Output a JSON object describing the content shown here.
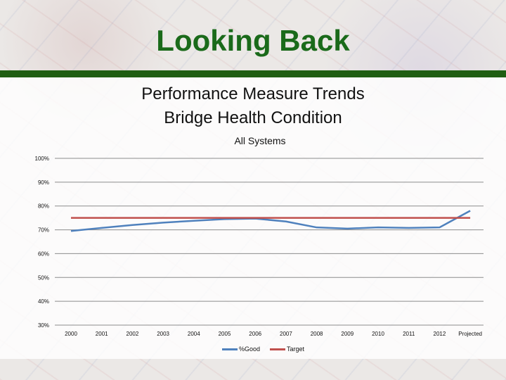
{
  "header": {
    "title": "Looking Back"
  },
  "chart_header": {
    "line1": "Performance Measure Trends",
    "line2": "Bridge Health Condition"
  },
  "chart_data": {
    "type": "line",
    "title": "All Systems",
    "xlabel": "",
    "ylabel": "",
    "categories": [
      "2000",
      "2001",
      "2002",
      "2003",
      "2004",
      "2005",
      "2006",
      "2007",
      "2008",
      "2009",
      "2010",
      "2011",
      "2012",
      "Projected"
    ],
    "ylim": [
      30,
      100
    ],
    "yticks": [
      "30%",
      "40%",
      "50%",
      "60%",
      "70%",
      "80%",
      "90%",
      "100%"
    ],
    "series": [
      {
        "name": "%Good",
        "color": "#4f81bd",
        "values": [
          69.5,
          70.8,
          72,
          73,
          73.8,
          74.5,
          74.7,
          73.5,
          71,
          70.5,
          71,
          70.8,
          71,
          78
        ]
      },
      {
        "name": "Target",
        "color": "#c0504d",
        "values": [
          75,
          75,
          75,
          75,
          75,
          75,
          75,
          75,
          75,
          75,
          75,
          75,
          75,
          75
        ]
      }
    ],
    "grid": true,
    "legend": "bottom"
  }
}
